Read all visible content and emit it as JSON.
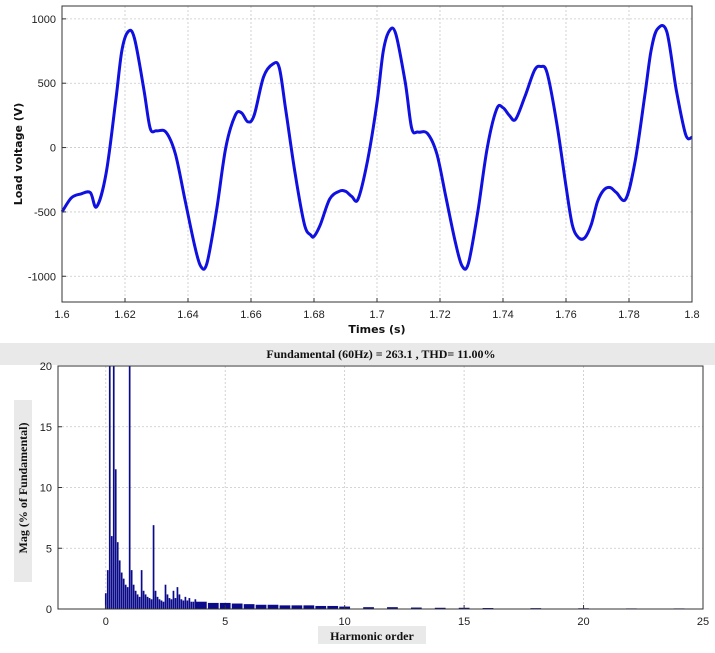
{
  "chart_data": [
    {
      "type": "line",
      "xlabel": "Times (s)",
      "ylabel": "Load voltage (V)",
      "xlim": [
        1.6,
        1.8
      ],
      "ylim": [
        -1200,
        1100
      ],
      "xticks": [
        1.6,
        1.62,
        1.64,
        1.66,
        1.68,
        1.7,
        1.72,
        1.74,
        1.76,
        1.78,
        1.8
      ],
      "xtick_labels": [
        "1.6",
        "1.62",
        "1.64",
        "1.66",
        "1.68",
        "1.7",
        "1.72",
        "1.74",
        "1.76",
        "1.78",
        "1.8"
      ],
      "yticks": [
        -1000,
        -500,
        0,
        500,
        1000
      ],
      "ytick_labels": [
        "-1000",
        "-500",
        "0",
        "500",
        "1000"
      ],
      "grid": true,
      "color": "#1010e0",
      "series": [
        {
          "x": [
            1.6,
            1.603,
            1.606,
            1.609,
            1.611,
            1.614,
            1.617,
            1.619,
            1.621,
            1.623,
            1.626,
            1.628,
            1.63,
            1.633,
            1.636,
            1.639,
            1.642,
            1.644,
            1.646,
            1.649,
            1.652,
            1.655,
            1.657,
            1.659,
            1.661,
            1.664,
            1.667,
            1.669,
            1.671,
            1.674,
            1.677,
            1.679,
            1.68,
            1.682,
            1.685,
            1.688,
            1.69,
            1.692,
            1.694,
            1.697,
            1.7,
            1.702,
            1.704,
            1.706,
            1.709,
            1.711,
            1.713,
            1.716,
            1.719,
            1.722,
            1.725,
            1.727,
            1.729,
            1.732,
            1.735,
            1.738,
            1.74,
            1.742,
            1.744,
            1.747,
            1.75,
            1.752,
            1.754,
            1.757,
            1.76,
            1.762,
            1.764,
            1.766,
            1.768,
            1.77,
            1.772,
            1.774,
            1.776,
            1.779,
            1.782,
            1.785,
            1.787,
            1.789,
            1.792,
            1.795,
            1.798,
            1.8
          ],
          "y": [
            -500,
            -390,
            -360,
            -350,
            -460,
            -200,
            350,
            750,
            900,
            850,
            450,
            150,
            130,
            120,
            -50,
            -400,
            -750,
            -920,
            -900,
            -500,
            0,
            250,
            270,
            200,
            250,
            550,
            650,
            620,
            300,
            -200,
            -600,
            -680,
            -690,
            -600,
            -400,
            -340,
            -340,
            -380,
            -400,
            -100,
            350,
            750,
            910,
            880,
            500,
            150,
            120,
            110,
            -50,
            -400,
            -750,
            -920,
            -900,
            -500,
            0,
            300,
            310,
            250,
            220,
            400,
            600,
            630,
            580,
            200,
            -300,
            -600,
            -700,
            -700,
            -600,
            -420,
            -330,
            -310,
            -350,
            -400,
            -100,
            400,
            750,
            920,
            900,
            450,
            100,
            80
          ]
        }
      ]
    },
    {
      "type": "bar",
      "title": "Fundamental (60Hz) = 263.1 , THD= 11.00%",
      "xlabel": "Harmonic order",
      "ylabel": "Mag (% of Fundamental)",
      "xlim": [
        -2,
        25
      ],
      "ylim": [
        0,
        20
      ],
      "xticks": [
        0,
        5,
        10,
        15,
        20,
        25
      ],
      "xtick_labels": [
        "0",
        "5",
        "10",
        "15",
        "20",
        "25"
      ],
      "yticks": [
        0,
        5,
        10,
        15,
        20
      ],
      "ytick_labels": [
        "0",
        "5",
        "10",
        "15",
        "20"
      ],
      "grid": true,
      "color": "#0a0a8a",
      "series": [
        {
          "x": [
            0.0,
            0.0833,
            0.1667,
            0.25,
            0.3333,
            0.4167,
            0.5,
            0.5833,
            0.6667,
            0.75,
            0.8333,
            0.9167,
            1.0,
            1.0833,
            1.1667,
            1.25,
            1.3333,
            1.4167,
            1.5,
            1.5833,
            1.6667,
            1.75,
            1.8333,
            1.9167,
            2.0,
            2.0833,
            2.1667,
            2.25,
            2.3333,
            2.4167,
            2.5,
            2.5833,
            2.6667,
            2.75,
            2.8333,
            2.9167,
            3.0,
            3.0833,
            3.1667,
            3.25,
            3.3333,
            3.4167,
            3.5,
            3.5833,
            3.6667,
            3.75,
            3.8333,
            3.9167,
            4.0,
            4.5,
            5.0,
            5.5,
            6.0,
            6.5,
            7.0,
            7.5,
            8.0,
            8.5,
            9.0,
            9.5,
            10.0,
            11.0,
            12.0,
            13.0,
            14.0,
            15.0,
            16.0,
            18.0,
            20.0,
            22.0,
            24.0
          ],
          "y": [
            1.3,
            3.2,
            20,
            6.0,
            20,
            11.5,
            5.5,
            4.0,
            3.0,
            2.5,
            2.0,
            1.8,
            20,
            3.2,
            2.0,
            1.5,
            1.2,
            1.0,
            3.2,
            1.5,
            1.2,
            1.0,
            0.9,
            0.8,
            6.9,
            1.5,
            1.0,
            0.8,
            0.7,
            0.6,
            2.0,
            1.2,
            0.9,
            0.8,
            1.5,
            0.9,
            1.8,
            1.2,
            0.8,
            0.7,
            1.0,
            0.7,
            0.9,
            0.6,
            0.6,
            0.8,
            0.5,
            0.5,
            0.6,
            0.5,
            0.5,
            0.45,
            0.4,
            0.35,
            0.35,
            0.3,
            0.3,
            0.3,
            0.25,
            0.25,
            0.2,
            0.15,
            0.15,
            0.12,
            0.1,
            0.1,
            0.08,
            0.07,
            0.06,
            0.05,
            0.05
          ]
        }
      ]
    }
  ]
}
